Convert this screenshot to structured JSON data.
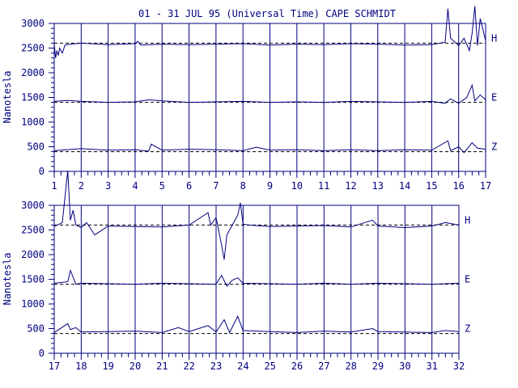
{
  "title": "01 - 31 JUL 95 (Universal Time) CAPE SCHMIDT",
  "colors": {
    "ink": "#000080",
    "background": "#ffffff"
  },
  "chart_data": [
    {
      "type": "line",
      "panel": "days 1-17",
      "ylabel": "Nanotesla",
      "ylim": [
        0,
        3000
      ],
      "yticks": [
        "0",
        "500",
        "1000",
        "1500",
        "2000",
        "2500",
        "3000"
      ],
      "xlim": [
        1,
        17
      ],
      "xticks": [
        "1",
        "2",
        "3",
        "4",
        "5",
        "6",
        "7",
        "8",
        "9",
        "10",
        "11",
        "12",
        "13",
        "14",
        "15",
        "16",
        "17"
      ],
      "grid_x": true,
      "baselines": [
        2600,
        1400,
        400
      ],
      "components": [
        "H",
        "E",
        "Z"
      ],
      "series": [
        {
          "name": "H",
          "baseline": 2600,
          "x": [
            1,
            1.05,
            1.1,
            1.15,
            1.2,
            1.3,
            1.4,
            1.6,
            2,
            3,
            4,
            4.1,
            4.2,
            5,
            6,
            7,
            8,
            9,
            10,
            11,
            12,
            13,
            14,
            15,
            15.5,
            15.6,
            15.7,
            15.8,
            16,
            16.2,
            16.4,
            16.5,
            16.6,
            16.7,
            16.8,
            17
          ],
          "y": [
            2580,
            2300,
            2450,
            2350,
            2500,
            2400,
            2560,
            2580,
            2600,
            2570,
            2590,
            2640,
            2560,
            2580,
            2570,
            2580,
            2590,
            2560,
            2580,
            2570,
            2590,
            2580,
            2560,
            2570,
            2620,
            3300,
            2700,
            2650,
            2550,
            2700,
            2450,
            2800,
            3350,
            2550,
            3100,
            2650
          ]
        },
        {
          "name": "E",
          "baseline": 1400,
          "x": [
            1,
            1.5,
            2,
            3,
            4,
            4.5,
            5,
            6,
            7,
            8,
            9,
            10,
            11,
            12,
            13,
            14,
            15,
            15.5,
            15.7,
            16,
            16.3,
            16.5,
            16.6,
            16.8,
            17
          ],
          "y": [
            1420,
            1440,
            1420,
            1400,
            1410,
            1450,
            1430,
            1400,
            1410,
            1420,
            1400,
            1410,
            1400,
            1420,
            1410,
            1400,
            1420,
            1380,
            1470,
            1380,
            1500,
            1750,
            1430,
            1550,
            1450
          ]
        },
        {
          "name": "Z",
          "baseline": 400,
          "x": [
            1,
            2,
            3,
            4,
            4.5,
            4.6,
            5,
            6,
            7,
            8,
            8.5,
            9,
            10,
            11,
            12,
            13,
            14,
            15,
            15.6,
            15.7,
            16,
            16.2,
            16.5,
            16.7,
            17
          ],
          "y": [
            420,
            460,
            430,
            440,
            410,
            550,
            430,
            450,
            440,
            420,
            490,
            430,
            440,
            420,
            440,
            420,
            440,
            430,
            620,
            420,
            500,
            380,
            580,
            470,
            450
          ]
        }
      ]
    },
    {
      "type": "line",
      "panel": "days 17-32",
      "ylabel": "Nanotesla",
      "ylim": [
        0,
        3000
      ],
      "yticks": [
        "0",
        "500",
        "1000",
        "1500",
        "2000",
        "2500",
        "3000"
      ],
      "xlim": [
        17,
        32
      ],
      "xticks": [
        "17",
        "18",
        "19",
        "20",
        "21",
        "22",
        "23",
        "24",
        "25",
        "26",
        "27",
        "28",
        "29",
        "30",
        "31",
        "32"
      ],
      "grid_x": true,
      "baselines": [
        2600,
        1400,
        400
      ],
      "components": [
        "H",
        "E",
        "Z"
      ],
      "series": [
        {
          "name": "H",
          "baseline": 2600,
          "x": [
            17,
            17.3,
            17.5,
            17.6,
            17.7,
            17.8,
            18,
            18.2,
            18.5,
            19,
            20,
            21,
            22,
            22.7,
            22.8,
            23,
            23.2,
            23.3,
            23.4,
            23.6,
            23.8,
            23.9,
            24,
            24.2,
            25,
            26,
            27,
            28,
            28.8,
            29,
            30,
            31,
            31.5,
            32
          ],
          "y": [
            2570,
            2650,
            3700,
            2700,
            2900,
            2600,
            2550,
            2650,
            2400,
            2580,
            2570,
            2560,
            2600,
            2850,
            2600,
            2750,
            2200,
            1900,
            2400,
            2600,
            2800,
            3050,
            2620,
            2600,
            2570,
            2580,
            2590,
            2560,
            2700,
            2580,
            2550,
            2580,
            2650,
            2600
          ]
        },
        {
          "name": "E",
          "baseline": 1400,
          "x": [
            17,
            17.5,
            17.6,
            17.8,
            18,
            19,
            20,
            21,
            22,
            23,
            23.2,
            23.4,
            23.6,
            23.8,
            24,
            25,
            26,
            27,
            28,
            29,
            30,
            31,
            32
          ],
          "y": [
            1420,
            1450,
            1680,
            1400,
            1420,
            1410,
            1400,
            1420,
            1410,
            1400,
            1580,
            1360,
            1480,
            1530,
            1420,
            1410,
            1400,
            1420,
            1400,
            1420,
            1410,
            1400,
            1420
          ]
        },
        {
          "name": "Z",
          "baseline": 400,
          "x": [
            17,
            17.5,
            17.6,
            17.8,
            18,
            19,
            20,
            21,
            21.6,
            22,
            22.7,
            23,
            23.3,
            23.5,
            23.8,
            24,
            25,
            26,
            27,
            28,
            28.8,
            29,
            30,
            31,
            31.5,
            32
          ],
          "y": [
            420,
            600,
            480,
            520,
            430,
            440,
            450,
            420,
            520,
            440,
            560,
            430,
            680,
            420,
            750,
            460,
            440,
            420,
            450,
            430,
            500,
            440,
            430,
            420,
            460,
            440
          ]
        }
      ]
    }
  ]
}
